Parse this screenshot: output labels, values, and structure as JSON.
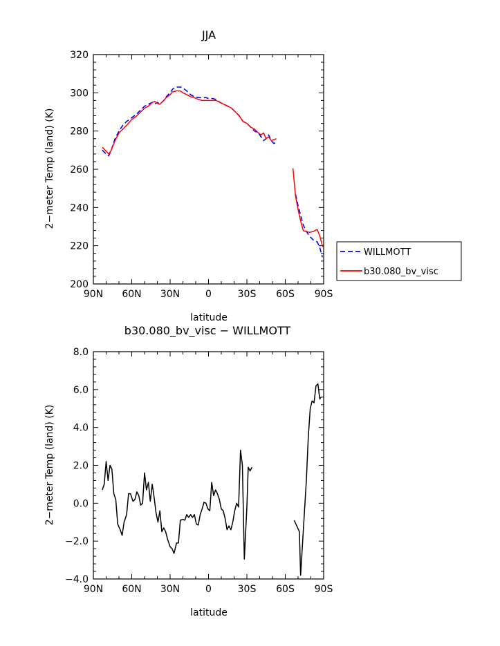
{
  "chart_data": [
    {
      "type": "line",
      "title": "JJA",
      "xlabel": "latitude",
      "ylabel": "2−meter Temp (land) (K)",
      "xlim": [
        90,
        -90
      ],
      "ylim": [
        200,
        320
      ],
      "xticks": [
        90,
        60,
        30,
        0,
        -30,
        -60,
        -90
      ],
      "xtick_labels": [
        "90N",
        "60N",
        "30N",
        "0",
        "30S",
        "60S",
        "90S"
      ],
      "yticks": [
        200,
        220,
        240,
        260,
        280,
        300,
        320
      ],
      "ytick_labels": [
        "200",
        "220",
        "240",
        "260",
        "280",
        "300",
        "320"
      ],
      "legend_position": "right",
      "series": [
        {
          "name": "WILLMOTT",
          "color": "#0000ff",
          "style": "dashed",
          "segments": [
            [
              [
                83,
                270
              ],
              [
                80,
                268
              ],
              [
                78,
                267
              ],
              [
                76,
                270
              ],
              [
                73,
                276
              ],
              [
                70,
                280
              ],
              [
                67,
                283
              ],
              [
                64,
                285
              ],
              [
                60,
                287
              ],
              [
                56,
                289
              ],
              [
                53,
                291
              ],
              [
                50,
                293
              ],
              [
                47,
                294
              ],
              [
                44,
                295
              ],
              [
                42,
                294
              ],
              [
                40,
                295
              ],
              [
                38,
                294
              ],
              [
                35,
                296
              ],
              [
                33,
                298
              ],
              [
                30,
                300
              ],
              [
                28,
                302
              ],
              [
                25,
                303
              ],
              [
                22,
                303
              ],
              [
                20,
                302.5
              ],
              [
                17,
                301
              ],
              [
                14,
                299
              ],
              [
                11,
                298
              ],
              [
                8,
                297.5
              ],
              [
                5,
                297.5
              ],
              [
                2,
                297.5
              ],
              [
                0,
                297
              ],
              [
                -3,
                297
              ],
              [
                -6,
                296.5
              ],
              [
                -9,
                295
              ],
              [
                -12,
                294
              ],
              [
                -15,
                293
              ],
              [
                -18,
                292
              ],
              [
                -21,
                290
              ],
              [
                -24,
                288
              ],
              [
                -27,
                285
              ],
              [
                -30,
                284
              ],
              [
                -33,
                282
              ],
              [
                -36,
                280
              ],
              [
                -39,
                279
              ],
              [
                -41,
                277
              ],
              [
                -43,
                275
              ],
              [
                -45,
                276
              ],
              [
                -47,
                278
              ],
              [
                -49,
                275
              ],
              [
                -51,
                273.5
              ],
              [
                -53,
                274
              ]
            ],
            [
              [
                -68,
                247
              ],
              [
                -70,
                241
              ],
              [
                -72,
                236
              ],
              [
                -74,
                231
              ],
              [
                -76,
                228
              ],
              [
                -79,
                225
              ],
              [
                -82,
                223
              ],
              [
                -85,
                222
              ],
              [
                -87,
                219
              ],
              [
                -89,
                214
              ]
            ]
          ]
        },
        {
          "name": "b30.080_bv_visc",
          "color": "#ff0000",
          "style": "solid",
          "segments": [
            [
              [
                83,
                271.5
              ],
              [
                80,
                269.5
              ],
              [
                78,
                268
              ],
              [
                76,
                270
              ],
              [
                73,
                275
              ],
              [
                70,
                279
              ],
              [
                67,
                281
              ],
              [
                64,
                283
              ],
              [
                60,
                286
              ],
              [
                56,
                288
              ],
              [
                53,
                290
              ],
              [
                50,
                292
              ],
              [
                47,
                293
              ],
              [
                44,
                295
              ],
              [
                42,
                295.5
              ],
              [
                40,
                294.5
              ],
              [
                38,
                294
              ],
              [
                35,
                296
              ],
              [
                33,
                297.5
              ],
              [
                30,
                299
              ],
              [
                28,
                300.5
              ],
              [
                25,
                301
              ],
              [
                22,
                301
              ],
              [
                20,
                300
              ],
              [
                17,
                299
              ],
              [
                14,
                298
              ],
              [
                11,
                297.5
              ],
              [
                8,
                296.5
              ],
              [
                5,
                296
              ],
              [
                2,
                296
              ],
              [
                0,
                296
              ],
              [
                -3,
                296
              ],
              [
                -6,
                296
              ],
              [
                -9,
                295
              ],
              [
                -12,
                294
              ],
              [
                -15,
                293
              ],
              [
                -18,
                292
              ],
              [
                -21,
                290
              ],
              [
                -24,
                288
              ],
              [
                -27,
                285
              ],
              [
                -30,
                284
              ],
              [
                -33,
                282
              ],
              [
                -36,
                281
              ],
              [
                -39,
                279
              ],
              [
                -41,
                278
              ],
              [
                -43,
                279
              ],
              [
                -45,
                276
              ],
              [
                -47,
                277
              ],
              [
                -49,
                275
              ],
              [
                -51,
                275.5
              ],
              [
                -53,
                276
              ]
            ],
            [
              [
                -66,
                260.5
              ],
              [
                -68,
                246
              ],
              [
                -70,
                239
              ],
              [
                -72,
                233
              ],
              [
                -74,
                228
              ],
              [
                -76,
                227.5
              ],
              [
                -79,
                227
              ],
              [
                -82,
                227.5
              ],
              [
                -85,
                228.5
              ],
              [
                -87,
                225
              ],
              [
                -89,
                220
              ],
              [
                -90,
                219
              ]
            ]
          ]
        }
      ]
    },
    {
      "type": "line",
      "title": "b30.080_bv_visc − WILLMOTT",
      "xlabel": "latitude",
      "ylabel": "2−meter Temp (land) (K)",
      "xlim": [
        90,
        -90
      ],
      "ylim": [
        -4,
        8
      ],
      "xticks": [
        90,
        60,
        30,
        0,
        -30,
        -60,
        -90
      ],
      "xtick_labels": [
        "90N",
        "60N",
        "30N",
        "0",
        "30S",
        "60S",
        "90S"
      ],
      "yticks": [
        -4,
        -2,
        0,
        2,
        4,
        6,
        8
      ],
      "ytick_labels": [
        "−4.0",
        "−2.0",
        "0.0",
        "2.0",
        "4.0",
        "6.0",
        "8.0"
      ],
      "series": [
        {
          "color": "#000000",
          "style": "solid",
          "segments": [
            [
              [
                83,
                0.7
              ],
              [
                81.5,
                1.0
              ],
              [
                80,
                2.2
              ],
              [
                78.5,
                1.2
              ],
              [
                77,
                2.0
              ],
              [
                75.5,
                1.8
              ],
              [
                74,
                0.5
              ],
              [
                72.5,
                0.2
              ],
              [
                71,
                -1.1
              ],
              [
                69,
                -1.4
              ],
              [
                67.5,
                -1.7
              ],
              [
                66,
                -1.0
              ],
              [
                64,
                -0.6
              ],
              [
                62.5,
                0.5
              ],
              [
                61,
                0.5
              ],
              [
                59,
                0.1
              ],
              [
                57.5,
                0.2
              ],
              [
                56,
                0.6
              ],
              [
                54.5,
                0.4
              ],
              [
                53,
                -0.1
              ],
              [
                51.5,
                0.0
              ],
              [
                50,
                1.6
              ],
              [
                48.5,
                0.7
              ],
              [
                47,
                1.1
              ],
              [
                45.5,
                0.1
              ],
              [
                44,
                1.0
              ],
              [
                42.5,
                0.3
              ],
              [
                41,
                -0.5
              ],
              [
                39.5,
                -1.0
              ],
              [
                38,
                -0.4
              ],
              [
                36.5,
                -1.5
              ],
              [
                35,
                -1.3
              ],
              [
                33.5,
                -1.5
              ],
              [
                32,
                -1.9
              ],
              [
                30,
                -2.3
              ],
              [
                28.5,
                -2.4
              ],
              [
                27,
                -2.65
              ],
              [
                25,
                -2.1
              ],
              [
                23.5,
                -2.1
              ],
              [
                22,
                -0.9
              ],
              [
                20,
                -0.85
              ],
              [
                18.5,
                -0.9
              ],
              [
                17,
                -0.6
              ],
              [
                15.5,
                -0.75
              ],
              [
                14,
                -0.6
              ],
              [
                12.5,
                -0.75
              ],
              [
                11,
                -0.6
              ],
              [
                9.5,
                -1.1
              ],
              [
                8,
                -1.15
              ],
              [
                6.5,
                -0.6
              ],
              [
                5,
                -0.3
              ],
              [
                3.5,
                0.05
              ],
              [
                2,
                0.0
              ],
              [
                0.5,
                -0.3
              ],
              [
                -1,
                -0.4
              ],
              [
                -2.5,
                1.1
              ],
              [
                -4,
                0.4
              ],
              [
                -5.5,
                0.7
              ],
              [
                -7,
                0.5
              ],
              [
                -8.5,
                0.2
              ],
              [
                -10,
                -0.3
              ],
              [
                -11.5,
                -0.4
              ],
              [
                -13,
                -0.8
              ],
              [
                -14.5,
                -1.4
              ],
              [
                -16,
                -1.2
              ],
              [
                -17.5,
                -1.4
              ],
              [
                -19,
                -1.0
              ],
              [
                -20.5,
                -0.4
              ],
              [
                -22,
                0.0
              ],
              [
                -23.5,
                -0.2
              ],
              [
                -25,
                2.8
              ],
              [
                -26.5,
                2.0
              ],
              [
                -28,
                -2.95
              ],
              [
                -30,
                -0.2
              ],
              [
                -31,
                1.9
              ],
              [
                -32.5,
                1.7
              ],
              [
                -34,
                1.9
              ]
            ],
            [
              [
                -67,
                -0.9
              ],
              [
                -69,
                -1.2
              ],
              [
                -71,
                -1.5
              ],
              [
                -72,
                -3.8
              ],
              [
                -73.5,
                -2.1
              ],
              [
                -75,
                -0.4
              ],
              [
                -76.5,
                1.2
              ],
              [
                -78,
                3.5
              ],
              [
                -79.5,
                5.0
              ],
              [
                -81,
                5.4
              ],
              [
                -82.5,
                5.3
              ],
              [
                -84,
                6.2
              ],
              [
                -85.5,
                6.3
              ],
              [
                -87,
                5.5
              ],
              [
                -88,
                5.6
              ]
            ]
          ]
        }
      ]
    }
  ]
}
